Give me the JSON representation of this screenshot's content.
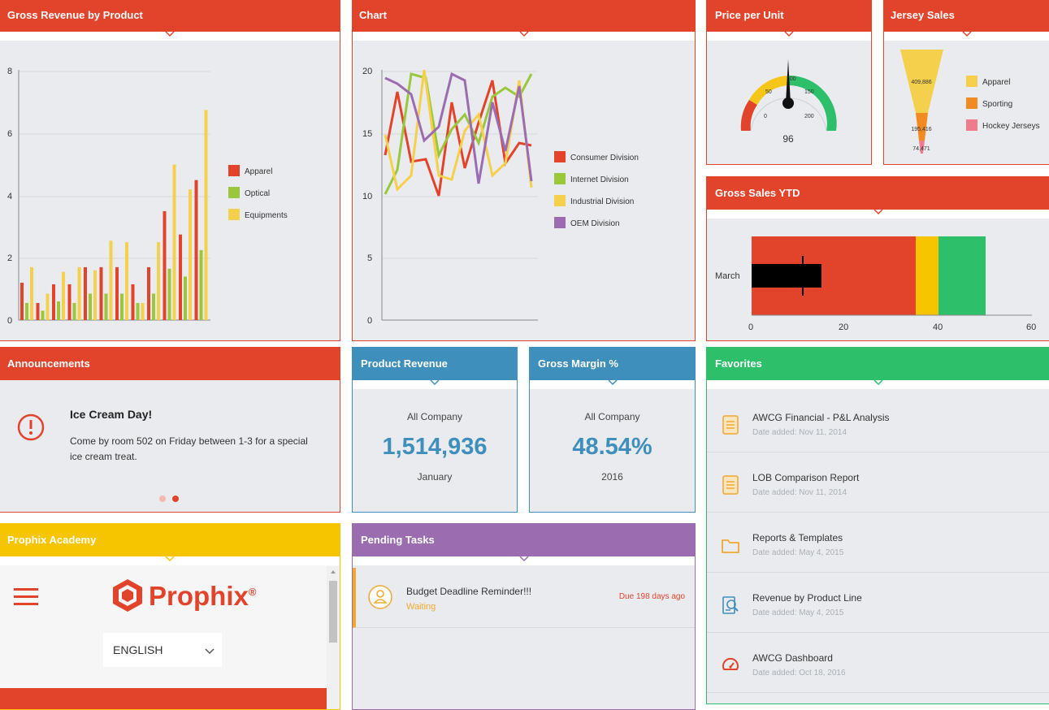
{
  "gross_revenue": {
    "title": "Gross Revenue by Product",
    "y_ticks": [
      "8",
      "6",
      "4",
      "2",
      "0"
    ],
    "legend": [
      {
        "label": "Apparel",
        "color": "#e2432b"
      },
      {
        "label": "Optical",
        "color": "#9bc73c"
      },
      {
        "label": "Equipments",
        "color": "#f5d04c"
      }
    ]
  },
  "chart": {
    "title": "Chart",
    "y_ticks": [
      "20",
      "15",
      "10",
      "5",
      "0"
    ],
    "legend": [
      {
        "label": "Consumer Division",
        "color": "#e2432b"
      },
      {
        "label": "Internet Division",
        "color": "#9bc73c"
      },
      {
        "label": "Industrial Division",
        "color": "#f5d04c"
      },
      {
        "label": "OEM Division",
        "color": "#9b6cb0"
      }
    ]
  },
  "price_per_unit": {
    "title": "Price per Unit",
    "scale": [
      "0",
      "50",
      "100",
      "150",
      "200"
    ],
    "value": "96"
  },
  "jersey_sales": {
    "title": "Jersey Sales",
    "values": [
      "409,886",
      "195,416",
      "74,471"
    ],
    "legend": [
      {
        "label": "Apparel",
        "color": "#f5d04c"
      },
      {
        "label": "Sporting",
        "color": "#f28a22"
      },
      {
        "label": "Hockey Jerseys",
        "color": "#f07b8e"
      }
    ]
  },
  "gross_sales_ytd": {
    "title": "Gross Sales YTD",
    "category": "March",
    "x_ticks": [
      "0",
      "20",
      "40",
      "60"
    ]
  },
  "announcements": {
    "title": "Announcements",
    "heading": "Ice Cream Day!",
    "body": "Come by room 502 on Friday between 1-3 for a special ice cream treat."
  },
  "product_revenue": {
    "title": "Product Revenue",
    "scope": "All Company",
    "value": "1,514,936",
    "period": "January"
  },
  "gross_margin": {
    "title": "Gross Margin %",
    "scope": "All Company",
    "value": "48.54%",
    "period": "2016"
  },
  "favorites": {
    "title": "Favorites",
    "items": [
      {
        "title": "AWCG Financial - P&L Analysis",
        "date": "Date added: Nov 11, 2014",
        "icon": "report-icon"
      },
      {
        "title": "LOB Comparison Report",
        "date": "Date added: Nov 11, 2014",
        "icon": "report-icon"
      },
      {
        "title": "Reports & Templates",
        "date": "Date added: May 4, 2015",
        "icon": "folder-icon"
      },
      {
        "title": "Revenue by Product Line",
        "date": "Date added: May 4, 2015",
        "icon": "analysis-icon"
      },
      {
        "title": "AWCG Dashboard",
        "date": "Date added: Oct 18, 2016",
        "icon": "dashboard-icon"
      }
    ]
  },
  "academy": {
    "title": "Prophix Academy",
    "brand": "Prophix",
    "registered": "®",
    "language": "ENGLISH"
  },
  "pending_tasks": {
    "title": "Pending Tasks",
    "items": [
      {
        "title": "Budget Deadline Reminder!!!",
        "status": "Waiting",
        "due": "Due 198 days ago"
      }
    ]
  }
}
